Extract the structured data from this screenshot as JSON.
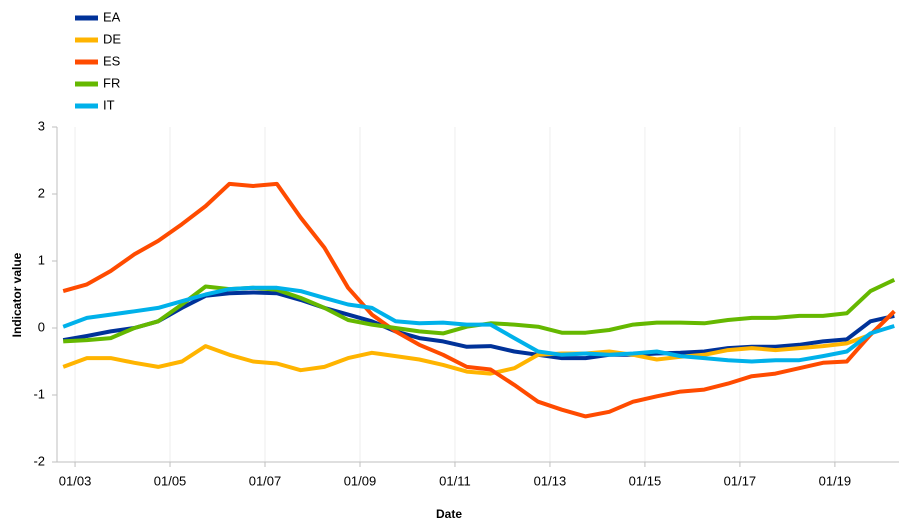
{
  "chart_data": {
    "type": "line",
    "x_label": "Date",
    "y_label": "Indicator value",
    "x": [
      2002.75,
      2003.25,
      2003.75,
      2004.25,
      2004.75,
      2005.25,
      2005.75,
      2006.25,
      2006.75,
      2007.25,
      2007.75,
      2008.25,
      2008.75,
      2009.25,
      2009.75,
      2010.25,
      2010.75,
      2011.25,
      2011.75,
      2012.25,
      2012.75,
      2013.25,
      2013.75,
      2014.25,
      2014.75,
      2015.25,
      2015.75,
      2016.25,
      2016.75,
      2017.25,
      2017.75,
      2018.25,
      2018.75,
      2019.25,
      2019.75,
      2020.25
    ],
    "xlim": [
      2002.62,
      2020.35
    ],
    "xticks": [
      {
        "value": 2003,
        "label": "01/03"
      },
      {
        "value": 2005,
        "label": "01/05"
      },
      {
        "value": 2007,
        "label": "01/07"
      },
      {
        "value": 2009,
        "label": "01/09"
      },
      {
        "value": 2011,
        "label": "01/11"
      },
      {
        "value": 2013,
        "label": "01/13"
      },
      {
        "value": 2015,
        "label": "01/15"
      },
      {
        "value": 2017,
        "label": "01/17"
      },
      {
        "value": 2019,
        "label": "01/19"
      }
    ],
    "ylim": [
      -2,
      3
    ],
    "yticks": [
      -2,
      -1,
      0,
      1,
      2,
      3
    ],
    "legend": "top-left",
    "series": [
      {
        "name": "EA",
        "color": "#003299",
        "values": [
          -0.18,
          -0.12,
          -0.05,
          0.0,
          0.1,
          0.3,
          0.48,
          0.52,
          0.53,
          0.52,
          0.42,
          0.3,
          0.2,
          0.1,
          -0.05,
          -0.15,
          -0.2,
          -0.28,
          -0.27,
          -0.35,
          -0.4,
          -0.45,
          -0.45,
          -0.4,
          -0.4,
          -0.38,
          -0.37,
          -0.35,
          -0.3,
          -0.28,
          -0.28,
          -0.25,
          -0.2,
          -0.17,
          0.1,
          0.18
        ]
      },
      {
        "name": "DE",
        "color": "#ffb400",
        "values": [
          -0.58,
          -0.45,
          -0.45,
          -0.52,
          -0.58,
          -0.5,
          -0.27,
          -0.4,
          -0.5,
          -0.53,
          -0.63,
          -0.58,
          -0.45,
          -0.37,
          -0.42,
          -0.47,
          -0.55,
          -0.65,
          -0.68,
          -0.6,
          -0.4,
          -0.38,
          -0.38,
          -0.35,
          -0.4,
          -0.47,
          -0.43,
          -0.4,
          -0.33,
          -0.3,
          -0.33,
          -0.3,
          -0.27,
          -0.23,
          -0.1,
          0.25
        ]
      },
      {
        "name": "ES",
        "color": "#ff4b00",
        "values": [
          0.55,
          0.65,
          0.85,
          1.1,
          1.3,
          1.55,
          1.82,
          2.15,
          2.12,
          2.15,
          1.65,
          1.2,
          0.6,
          0.2,
          -0.05,
          -0.25,
          -0.4,
          -0.58,
          -0.62,
          -0.85,
          -1.1,
          -1.22,
          -1.32,
          -1.25,
          -1.1,
          -1.02,
          -0.95,
          -0.92,
          -0.83,
          -0.72,
          -0.68,
          -0.6,
          -0.52,
          -0.5,
          -0.1,
          0.25
        ]
      },
      {
        "name": "FR",
        "color": "#65b800",
        "values": [
          -0.2,
          -0.18,
          -0.15,
          0.0,
          0.1,
          0.35,
          0.62,
          0.58,
          0.6,
          0.57,
          0.45,
          0.3,
          0.12,
          0.05,
          0.0,
          -0.05,
          -0.08,
          0.02,
          0.07,
          0.05,
          0.02,
          -0.07,
          -0.07,
          -0.03,
          0.05,
          0.08,
          0.08,
          0.07,
          0.12,
          0.15,
          0.15,
          0.18,
          0.18,
          0.22,
          0.55,
          0.72
        ]
      },
      {
        "name": "IT",
        "color": "#00b1ea",
        "values": [
          0.02,
          0.15,
          0.2,
          0.25,
          0.3,
          0.4,
          0.5,
          0.58,
          0.6,
          0.6,
          0.55,
          0.45,
          0.35,
          0.3,
          0.1,
          0.07,
          0.08,
          0.05,
          0.05,
          -0.15,
          -0.35,
          -0.4,
          -0.38,
          -0.4,
          -0.38,
          -0.35,
          -0.42,
          -0.45,
          -0.48,
          -0.5,
          -0.48,
          -0.48,
          -0.42,
          -0.35,
          -0.08,
          0.03
        ]
      }
    ]
  }
}
